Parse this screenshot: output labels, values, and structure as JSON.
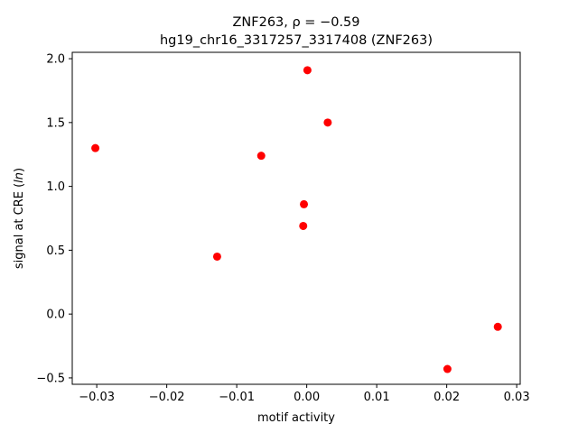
{
  "chart_data": {
    "type": "scatter",
    "title_line1": "ZNF263, ρ = −0.59",
    "title_line2": "hg19_chr16_3317257_3317408 (ZNF263)",
    "xlabel": "motif activity",
    "ylabel": "signal at CRE (ln)",
    "xlim": [
      -0.0335,
      0.0305
    ],
    "ylim": [
      -0.55,
      2.05
    ],
    "xticks": [
      -0.03,
      -0.02,
      -0.01,
      0.0,
      0.01,
      0.02,
      0.03
    ],
    "xtick_labels": [
      "−0.03",
      "−0.02",
      "−0.01",
      "0.00",
      "0.01",
      "0.02",
      "0.03"
    ],
    "yticks": [
      -0.5,
      0.0,
      0.5,
      1.0,
      1.5,
      2.0
    ],
    "ytick_labels": [
      "−0.5",
      "0.0",
      "0.5",
      "1.0",
      "1.5",
      "2.0"
    ],
    "grid": false,
    "marker_color": "#ff0000",
    "points": [
      {
        "x": -0.0302,
        "y": 1.3
      },
      {
        "x": -0.0128,
        "y": 0.45
      },
      {
        "x": -0.0065,
        "y": 1.24
      },
      {
        "x": -0.0005,
        "y": 0.69
      },
      {
        "x": -0.0004,
        "y": 0.86
      },
      {
        "x": 0.0001,
        "y": 1.91
      },
      {
        "x": 0.003,
        "y": 1.5
      },
      {
        "x": 0.0201,
        "y": -0.43
      },
      {
        "x": 0.0273,
        "y": -0.1
      }
    ]
  }
}
